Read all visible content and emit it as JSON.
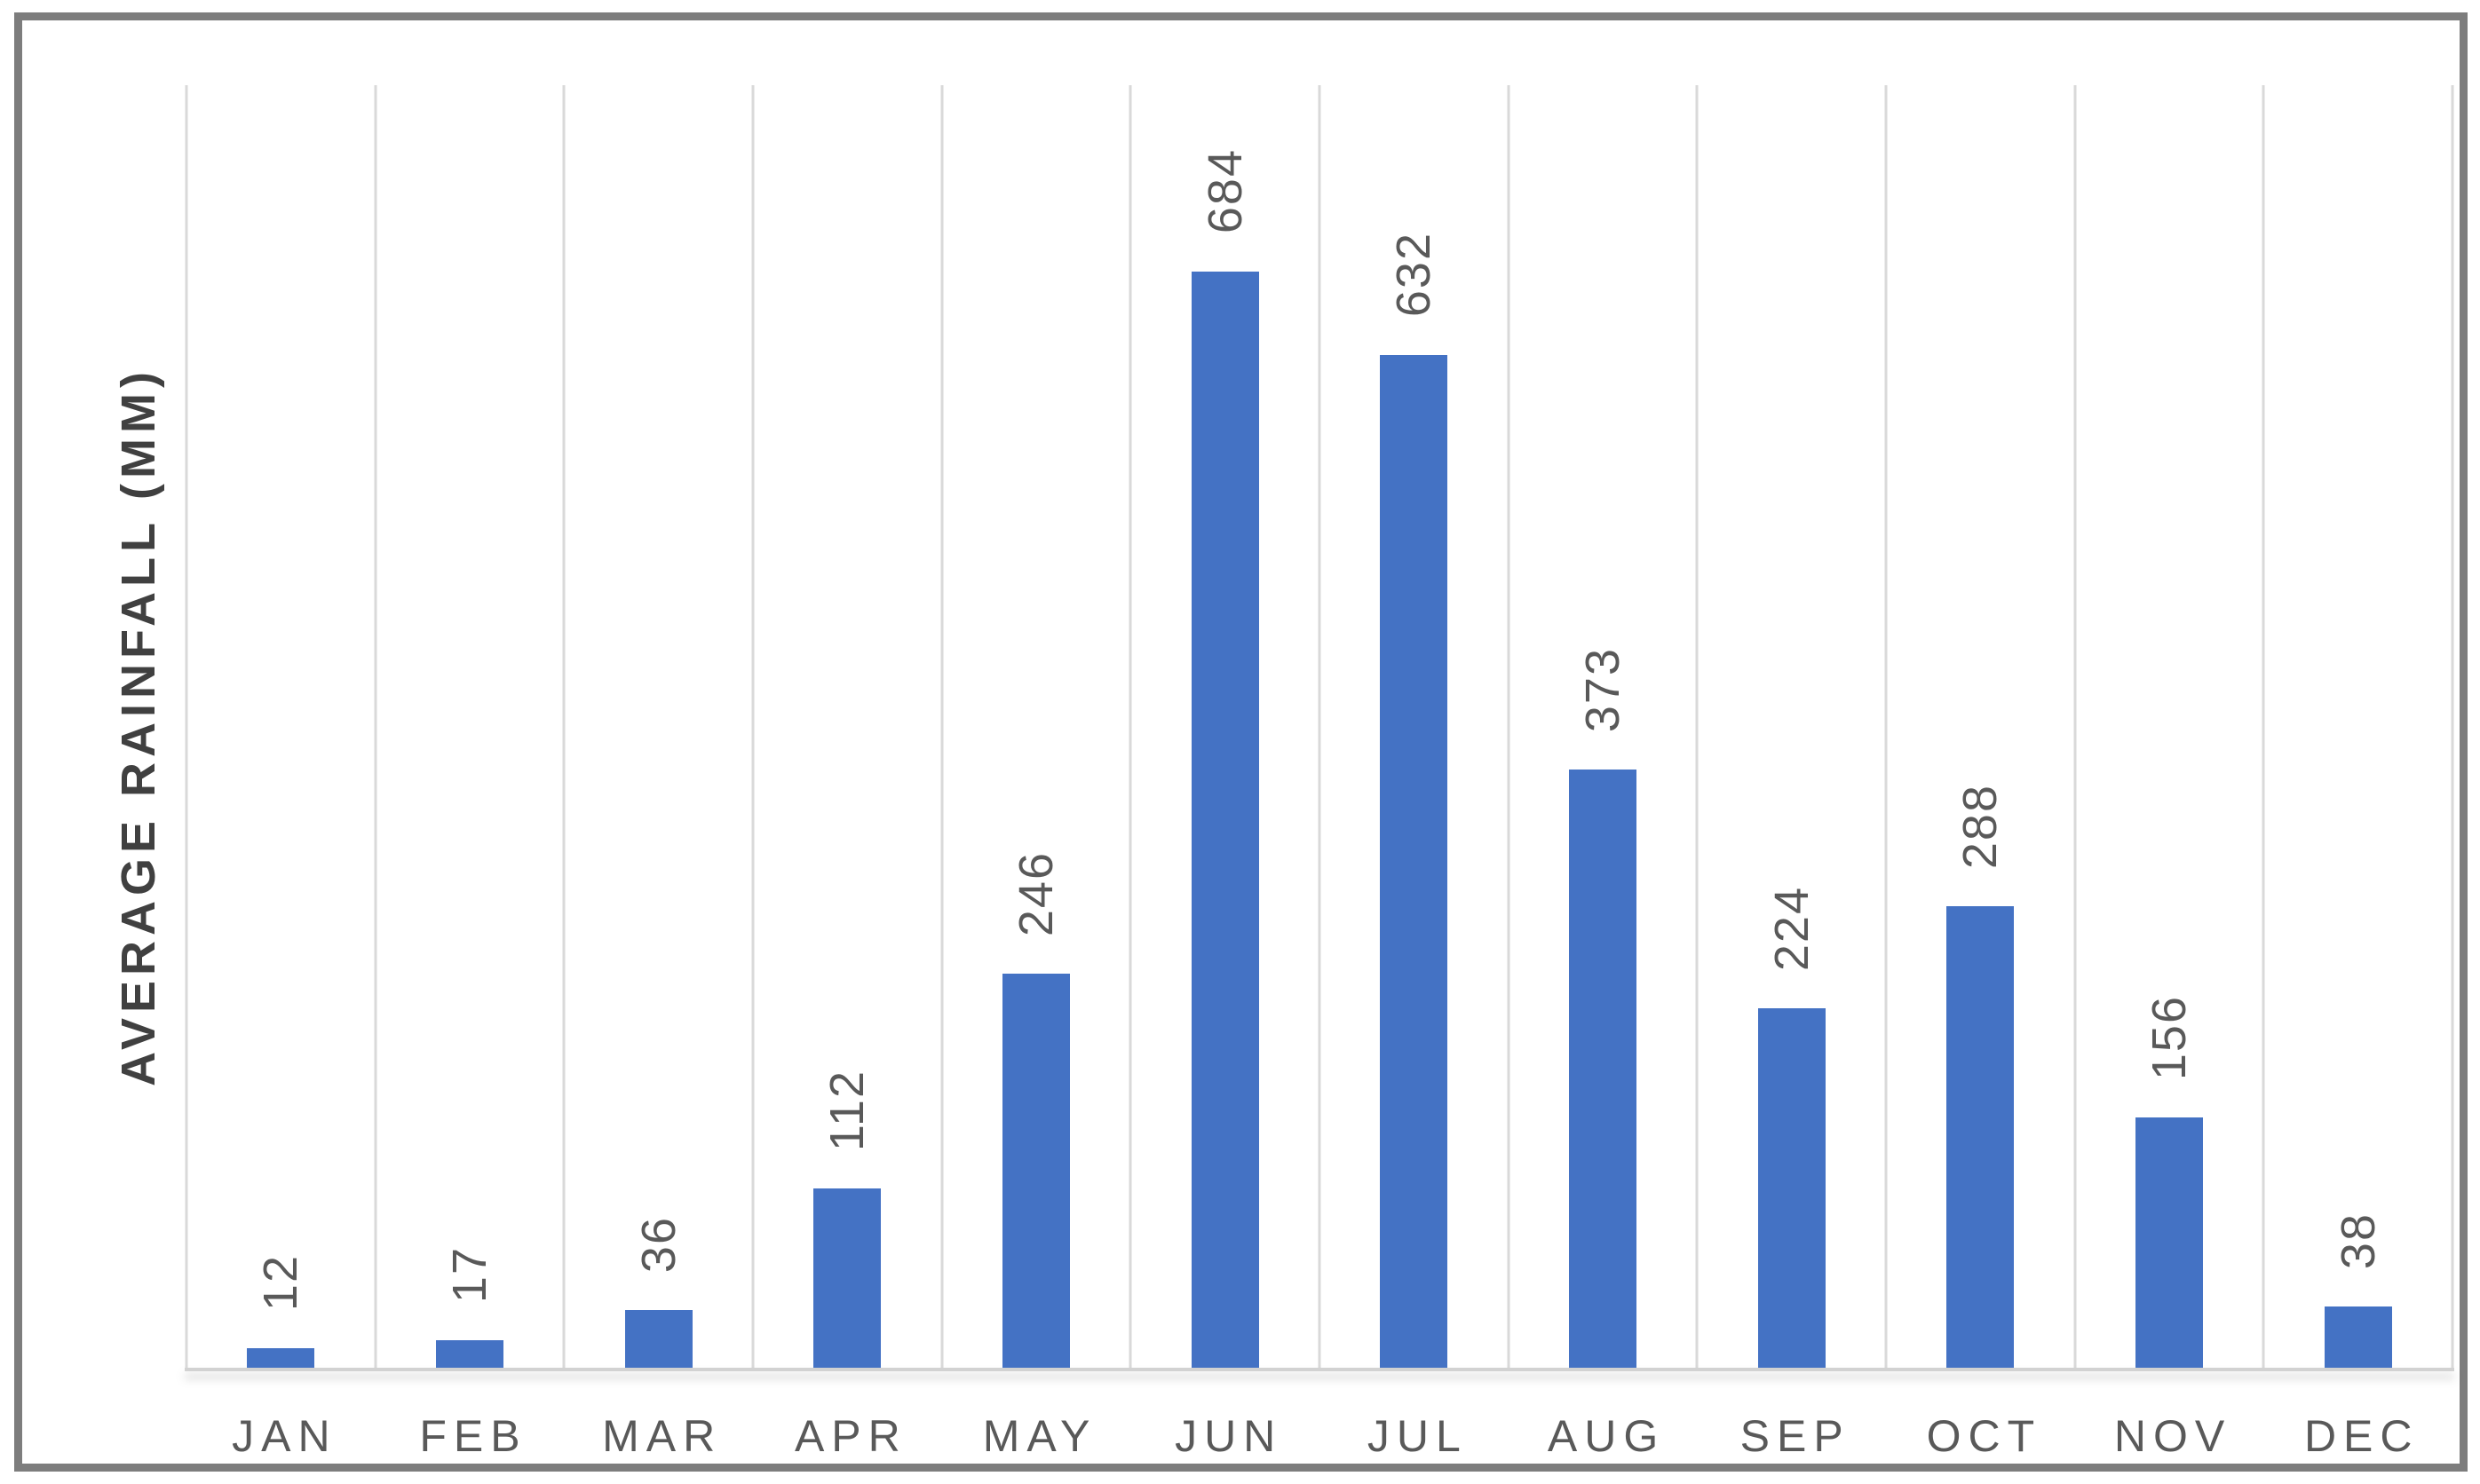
{
  "chart_data": {
    "type": "bar",
    "title": "",
    "categories": [
      "JAN",
      "FEB",
      "MAR",
      "APR",
      "MAY",
      "JUN",
      "JUL",
      "AUG",
      "SEP",
      "OCT",
      "NOV",
      "DEC"
    ],
    "values": [
      12,
      17,
      36,
      112,
      246,
      684,
      632,
      373,
      224,
      288,
      156,
      38
    ],
    "xlabel": "",
    "ylabel": "AVERAGE RAINFALL (MM)",
    "ylim": [
      0,
      800
    ],
    "grid": "vertical category separators only",
    "legend": "none",
    "data_labels": "value above each bar, rotated 90 degrees",
    "colors": {
      "bar_fill": "#4472c4",
      "gridline": "#d9d9d9",
      "axis_line": "#d2d2d2",
      "value_label_text": "#595959",
      "category_label_text": "#595959",
      "axis_title_text": "#404040",
      "outer_border": "#7d7d7d",
      "background": "#ffffff"
    }
  }
}
